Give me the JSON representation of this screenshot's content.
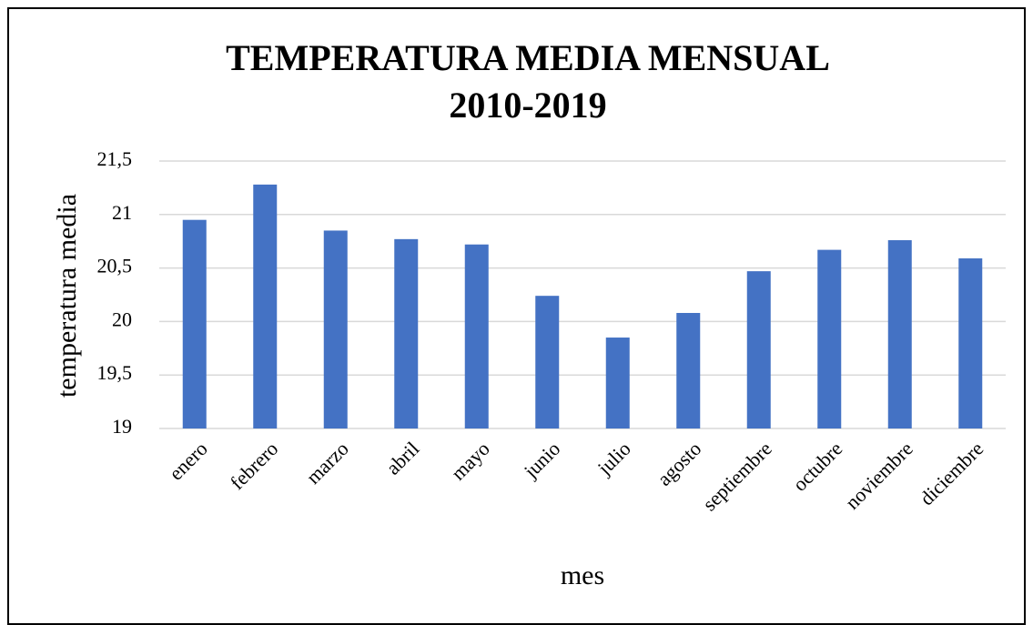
{
  "chart_data": {
    "type": "bar",
    "title": [
      "TEMPERATURA MEDIA MENSUAL",
      "2010-2019"
    ],
    "x_label": "mes",
    "y_label": "temperatura media",
    "categories": [
      "enero",
      "febrero",
      "marzo",
      "abril",
      "mayo",
      "junio",
      "julio",
      "agosto",
      "septiembre",
      "octubre",
      "noviembre",
      "diciembre"
    ],
    "values": [
      20.95,
      21.28,
      20.85,
      20.77,
      20.72,
      20.24,
      19.85,
      20.08,
      20.47,
      20.67,
      20.76,
      20.59
    ],
    "color": "#4472c4",
    "ylim": [
      19,
      21.5
    ],
    "yticks": [
      19,
      {
        "value": 19.5,
        "label": "19,5"
      },
      20,
      {
        "value": 20.5,
        "label": "20,5"
      },
      21,
      {
        "value": 21.5,
        "label": "21,5"
      }
    ],
    "grid": true
  }
}
